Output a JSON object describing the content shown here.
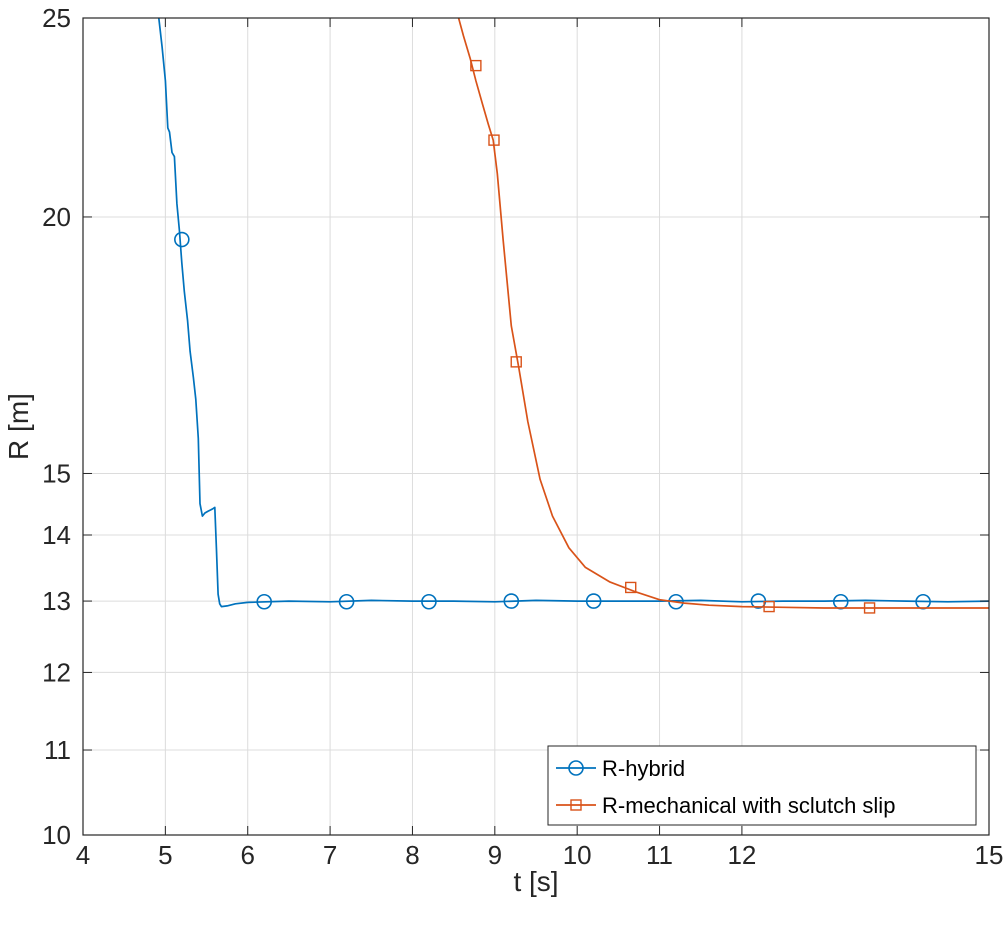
{
  "chart_data": {
    "type": "line",
    "title": "",
    "xlabel": "t [s]",
    "ylabel": "R [m]",
    "xlim": [
      4,
      15
    ],
    "ylim": [
      10,
      25
    ],
    "y_scale": "log",
    "xticks": [
      4,
      5,
      6,
      7,
      8,
      9,
      10,
      11,
      12,
      15
    ],
    "xtick_labels": [
      "4",
      "5",
      "6",
      "7",
      "8",
      "9",
      "10",
      "11",
      "12",
      "15"
    ],
    "yticks": [
      10,
      11,
      12,
      13,
      14,
      15,
      20,
      25
    ],
    "ytick_labels": [
      "10",
      "11",
      "12",
      "13",
      "14",
      "15",
      "20",
      "25"
    ],
    "grid": true,
    "legend": {
      "position": "bottom-right"
    },
    "series": [
      {
        "name": "R-hybrid",
        "color": "#0072BD",
        "marker": "circle",
        "x": [
          4.92,
          4.96,
          5.0,
          5.03,
          5.05,
          5.08,
          5.11,
          5.14,
          5.17,
          5.2,
          5.23,
          5.27,
          5.3,
          5.34,
          5.37,
          5.4,
          5.42,
          5.45,
          5.48,
          5.52,
          5.55,
          5.58,
          5.6,
          5.62,
          5.64,
          5.66,
          5.68,
          5.75,
          5.85,
          6.0,
          6.5,
          7.0,
          7.5,
          8.0,
          8.5,
          9.0,
          9.5,
          10.0,
          10.5,
          11.0,
          11.5,
          12.0,
          12.5,
          13.0,
          13.5,
          14.0,
          14.5,
          15.0
        ],
        "y": [
          25.0,
          24.2,
          23.3,
          22.1,
          22.0,
          21.5,
          21.4,
          20.3,
          19.7,
          19.0,
          18.4,
          17.8,
          17.2,
          16.7,
          16.3,
          15.6,
          14.5,
          14.3,
          14.35,
          14.38,
          14.4,
          14.42,
          14.44,
          13.8,
          13.1,
          12.96,
          12.92,
          12.93,
          12.96,
          12.98,
          13.0,
          12.99,
          13.01,
          13.0,
          13.0,
          12.99,
          13.01,
          13.0,
          13.0,
          13.0,
          13.01,
          12.99,
          13.0,
          13.0,
          13.01,
          13.0,
          12.99,
          13.0
        ],
        "markers_x": [
          5.2,
          6.2,
          7.2,
          8.2,
          9.2,
          10.2,
          11.2,
          12.2,
          13.2,
          14.2
        ],
        "markers_y": [
          19.5,
          12.99,
          12.99,
          12.99,
          13.0,
          13.0,
          12.99,
          13.0,
          12.99,
          12.99
        ]
      },
      {
        "name": "R-mechanical with sclutch slip",
        "color": "#D95319",
        "marker": "square",
        "x": [
          8.56,
          8.62,
          8.7,
          8.77,
          8.85,
          8.92,
          8.98,
          9.03,
          9.1,
          9.2,
          9.29,
          9.4,
          9.55,
          9.7,
          9.9,
          10.1,
          10.4,
          10.7,
          11.0,
          11.3,
          11.6,
          12.0,
          12.5,
          13.0,
          13.5,
          14.0,
          15.0
        ],
        "y": [
          25.0,
          24.5,
          23.9,
          23.3,
          22.7,
          22.2,
          21.8,
          21.0,
          19.5,
          17.7,
          16.9,
          15.9,
          14.9,
          14.3,
          13.8,
          13.5,
          13.28,
          13.14,
          13.02,
          12.97,
          12.94,
          12.92,
          12.91,
          12.9,
          12.9,
          12.9,
          12.9
        ],
        "markers_x": [
          8.77,
          8.99,
          9.26,
          10.65,
          12.33,
          13.55
        ],
        "markers_y": [
          23.7,
          21.8,
          17.0,
          13.2,
          12.92,
          12.9
        ]
      }
    ]
  }
}
